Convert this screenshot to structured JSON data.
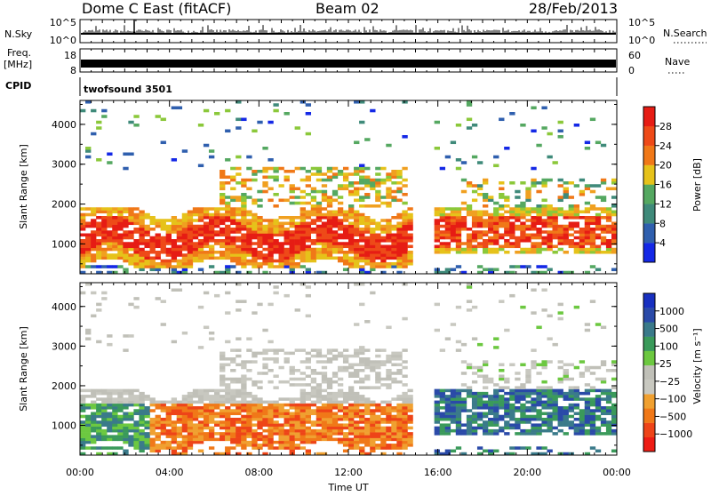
{
  "header": {
    "station": "Dome C East (fitACF)",
    "beam": "Beam 02",
    "date": "28/Feb/2013"
  },
  "strips": {
    "nsky_label": "N.Sky",
    "nsky_ticks": [
      "10^5",
      "10^0"
    ],
    "nsearch_label": "N.Search",
    "nsearch_ticks": [
      "10^5",
      "10^0"
    ],
    "freq_label_1": "Freq.",
    "freq_label_2": "[MHz]",
    "freq_ticks": [
      "18",
      "8"
    ],
    "nave_label": "Nave",
    "nave_ticks": [
      "60",
      "0"
    ],
    "cpid_label": "CPID",
    "cpid_value": "twofsound 3501"
  },
  "colors": {
    "power_scale": [
      "#1428e6",
      "#2f5fae",
      "#3f8a7a",
      "#55a861",
      "#8bc83a",
      "#e6c21a",
      "#f0a020",
      "#f07818",
      "#ee4a18",
      "#e61c14"
    ],
    "velocity_scale": [
      "#ee1c14",
      "#ee4418",
      "#f07818",
      "#f0a030",
      "#c8c8c0",
      "#c0c0b8",
      "#6cc840",
      "#3a9a5a",
      "#3a7a8a",
      "#2a4aa8",
      "#1830c0"
    ],
    "frame": "#000000"
  },
  "chart_data": [
    {
      "type": "heatmap",
      "panel": "power",
      "ylabel": "Slant Range [km]",
      "ylim": [
        250,
        4600
      ],
      "yticks": [
        "1000",
        "2000",
        "3000",
        "4000"
      ],
      "xlim": [
        "00:00",
        "24:00"
      ],
      "colorbar_label": "Power [dB]",
      "colorbar_range": [
        0,
        32
      ],
      "colorbar_ticks": [
        "4",
        "8",
        "12",
        "16",
        "20",
        "24",
        "28"
      ]
    },
    {
      "type": "heatmap",
      "panel": "velocity",
      "ylabel": "Slant Range [km]",
      "ylim": [
        250,
        4600
      ],
      "yticks": [
        "1000",
        "2000",
        "3000",
        "4000"
      ],
      "xlim": [
        "00:00",
        "24:00"
      ],
      "colorbar_label": "Velocity [m s⁻¹]",
      "colorbar_ticks": [
        "1000",
        "500",
        "100",
        "25",
        "−25",
        "−100",
        "−500",
        "−1000"
      ]
    }
  ],
  "xaxis": {
    "ticks": [
      "00:00",
      "04:00",
      "08:00",
      "12:00",
      "16:00",
      "20:00",
      "00:00"
    ],
    "label": "Time UT"
  }
}
